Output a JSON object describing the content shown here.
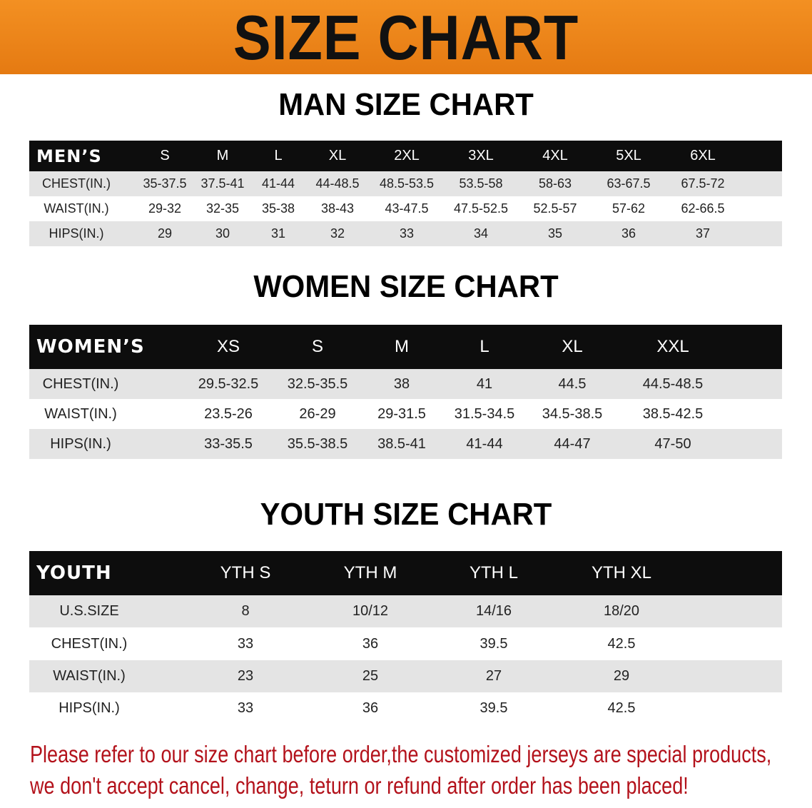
{
  "banner": {
    "title": "SIZE CHART",
    "color": "#ef8a1f"
  },
  "men": {
    "title": "MAN SIZE CHART",
    "header": [
      "MEN’S",
      "S",
      "M",
      "L",
      "XL",
      "2XL",
      "3XL",
      "4XL",
      "5XL",
      "6XL"
    ],
    "rows": [
      [
        "CHEST(IN.)",
        "35-37.5",
        "37.5-41",
        "41-44",
        "44-48.5",
        "48.5-53.5",
        "53.5-58",
        "58-63",
        "63-67.5",
        "67.5-72"
      ],
      [
        "WAIST(IN.)",
        "29-32",
        "32-35",
        "35-38",
        "38-43",
        "43-47.5",
        "47.5-52.5",
        "52.5-57",
        "57-62",
        "62-66.5"
      ],
      [
        "HIPS(IN.)",
        "29",
        "30",
        "31",
        "32",
        "33",
        "34",
        "35",
        "36",
        "37"
      ]
    ]
  },
  "women": {
    "title": "WOMEN SIZE CHART",
    "header": [
      "WOMEN’S",
      "XS",
      "S",
      "M",
      "L",
      "XL",
      "XXL"
    ],
    "rows": [
      [
        "CHEST(IN.)",
        "29.5-32.5",
        "32.5-35.5",
        "38",
        "41",
        "44.5",
        "44.5-48.5"
      ],
      [
        "WAIST(IN.)",
        "23.5-26",
        "26-29",
        "29-31.5",
        "31.5-34.5",
        "34.5-38.5",
        "38.5-42.5"
      ],
      [
        "HIPS(IN.)",
        "33-35.5",
        "35.5-38.5",
        "38.5-41",
        "41-44",
        "44-47",
        "47-50"
      ]
    ]
  },
  "youth": {
    "title": "YOUTH SIZE CHART",
    "header": [
      "YOUTH",
      "YTH S",
      "YTH M",
      "YTH L",
      "YTH XL"
    ],
    "rows": [
      [
        "U.S.SIZE",
        "8",
        "10/12",
        "14/16",
        "18/20"
      ],
      [
        "CHEST(IN.)",
        "33",
        "36",
        "39.5",
        "42.5"
      ],
      [
        "WAIST(IN.)",
        "23",
        "25",
        "27",
        "29"
      ],
      [
        "HIPS(IN.)",
        "33",
        "36",
        "39.5",
        "42.5"
      ]
    ]
  },
  "notice": {
    "line1": "Please refer to our size chart before order,the customized jerseys are special products,",
    "line2": "we don't accept cancel, change, teturn or refund after order has been placed!",
    "color": "#b3121b"
  }
}
